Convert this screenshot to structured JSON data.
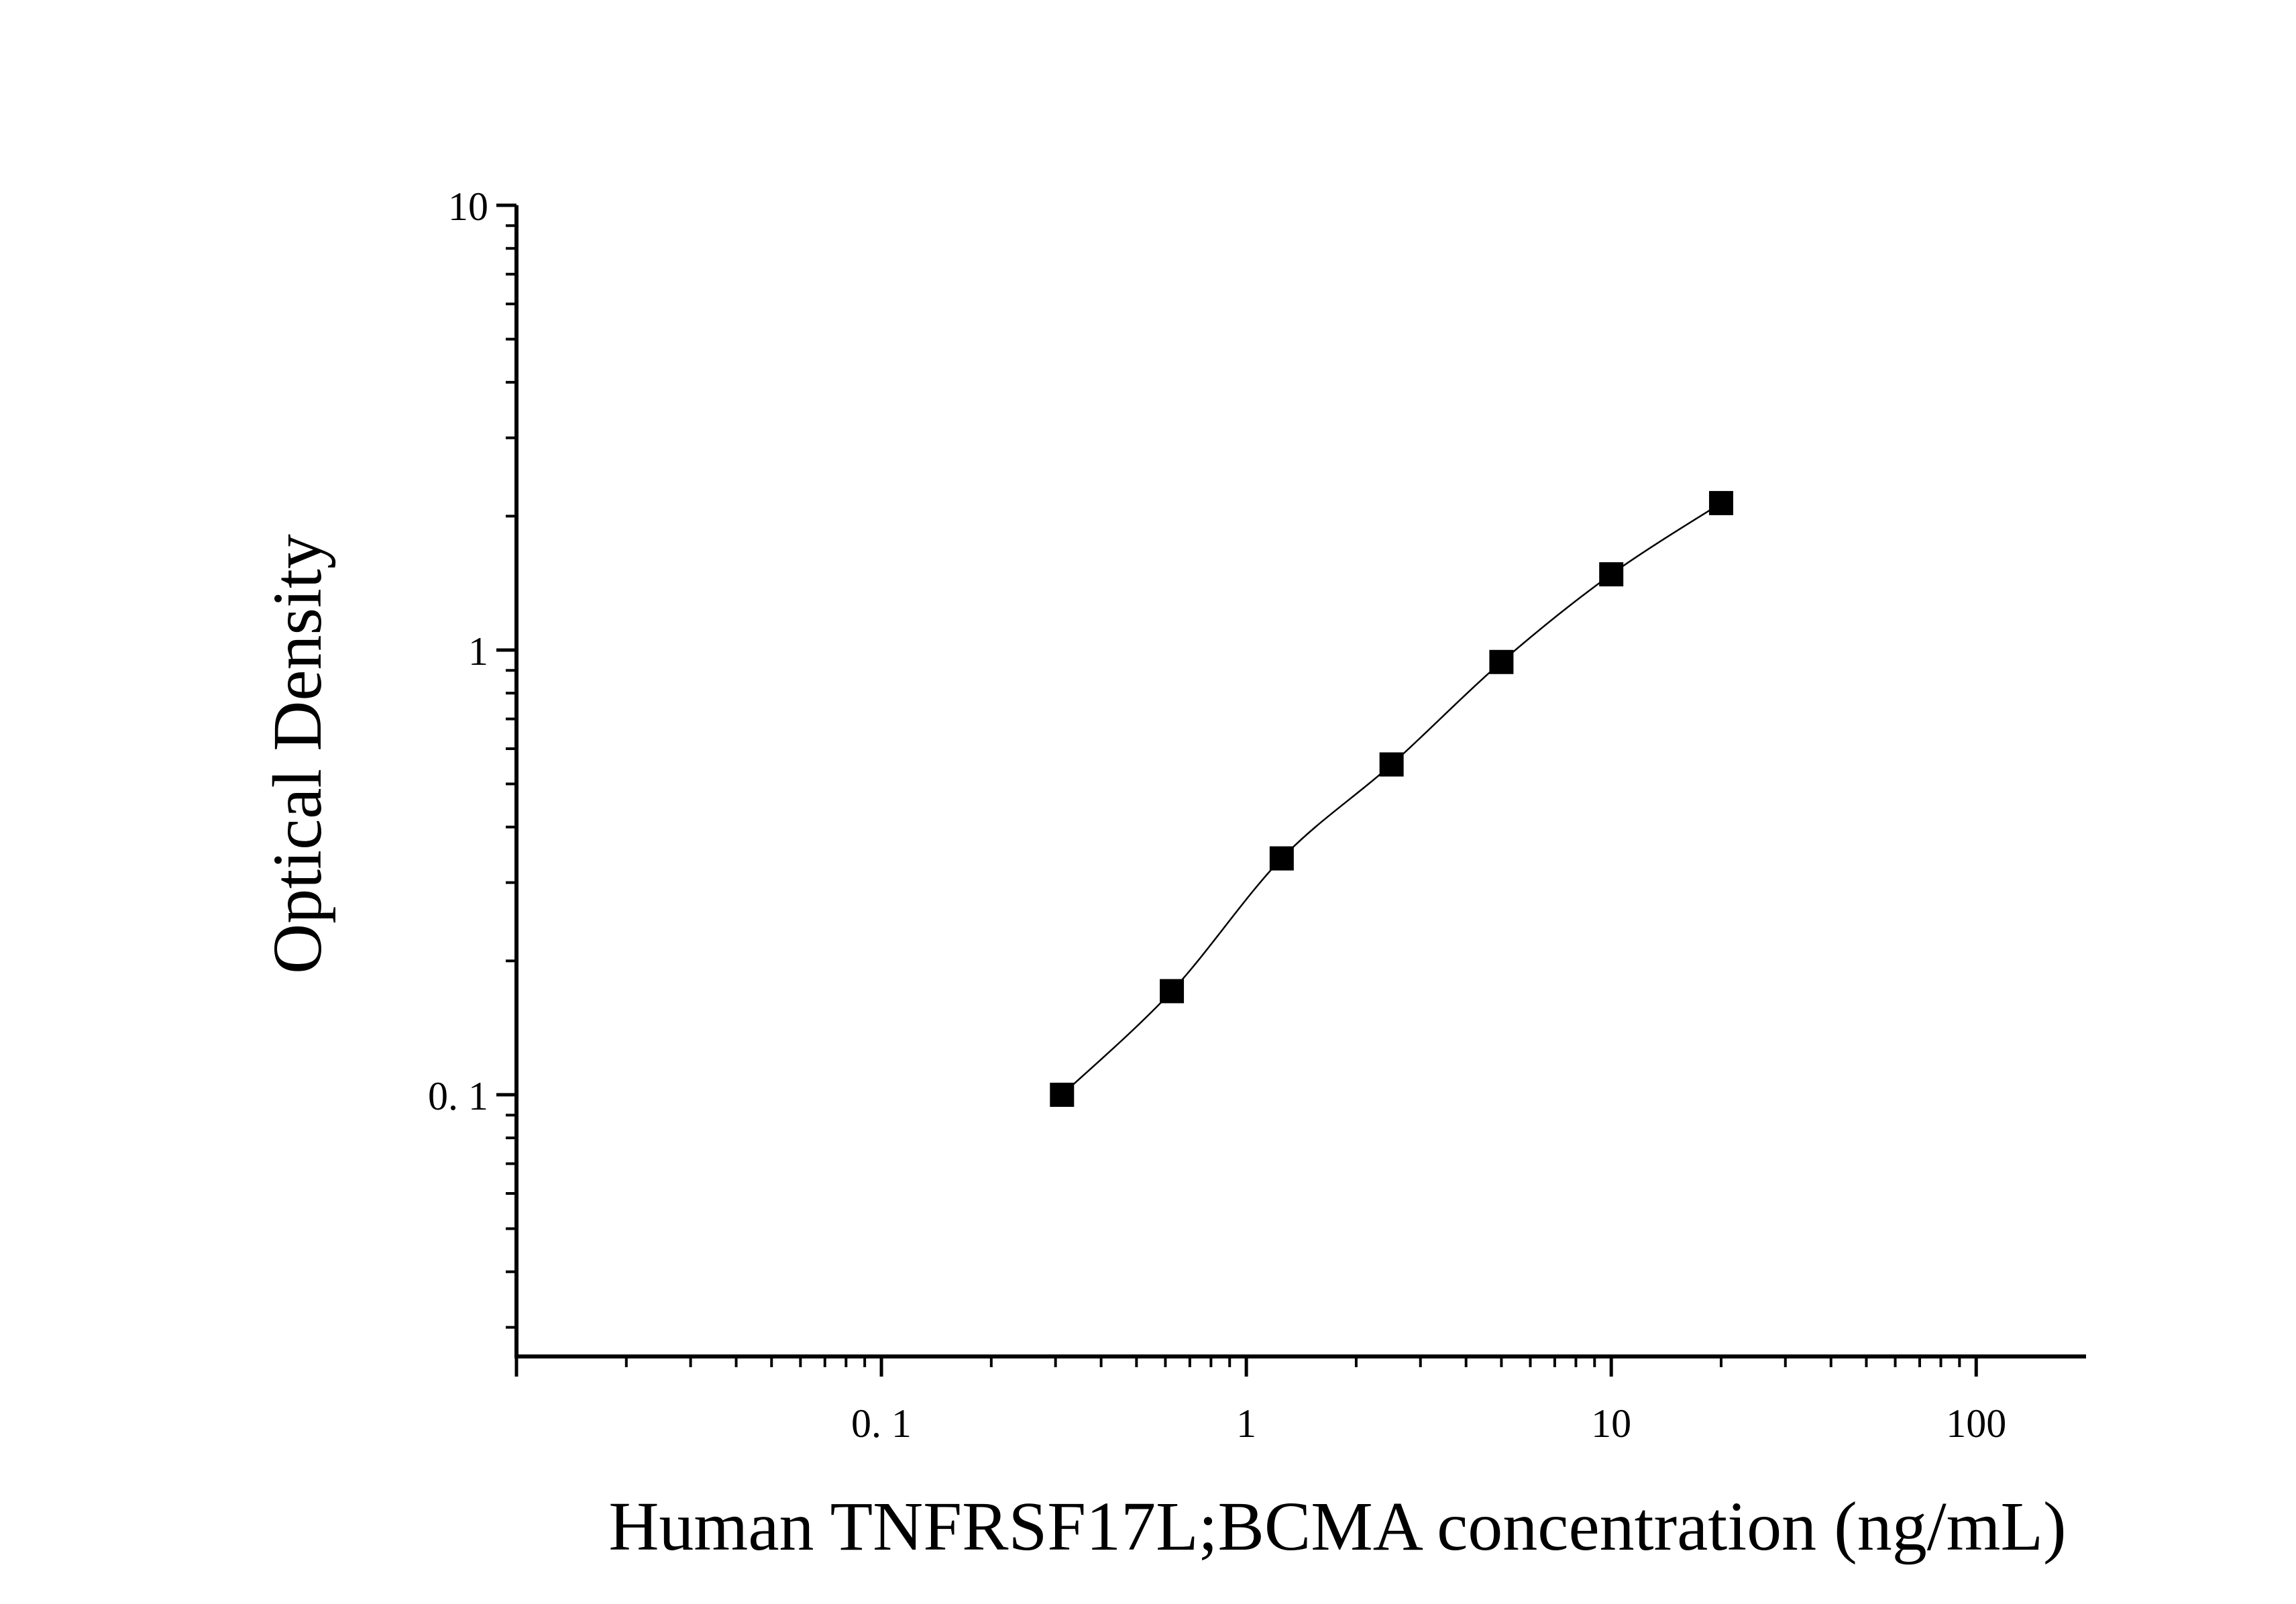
{
  "chart_data": {
    "type": "scatter",
    "title": "",
    "xlabel": "Human TNFRSF17L;BCMA concentration (ng/mL)",
    "ylabel": "Optical Density",
    "x_scale": "log",
    "y_scale": "log",
    "xlim": [
      0.01,
      200
    ],
    "ylim": [
      0.0258,
      10
    ],
    "x_ticks": [
      {
        "value": 0.1,
        "label": "0. 1"
      },
      {
        "value": 1,
        "label": "1"
      },
      {
        "value": 10,
        "label": "10"
      },
      {
        "value": 100,
        "label": "100"
      }
    ],
    "y_ticks": [
      {
        "value": 0.1,
        "label": "0. 1"
      },
      {
        "value": 1,
        "label": "1"
      },
      {
        "value": 10,
        "label": "10"
      }
    ],
    "grid": false,
    "legend": "none",
    "series": [
      {
        "marker": "square",
        "color": "#000000",
        "fit_line": true,
        "x": [
          0.3125,
          0.625,
          1.25,
          2.5,
          5,
          10,
          20
        ],
        "y": [
          0.1,
          0.171,
          0.34,
          0.553,
          0.94,
          1.48,
          2.14
        ]
      }
    ]
  }
}
